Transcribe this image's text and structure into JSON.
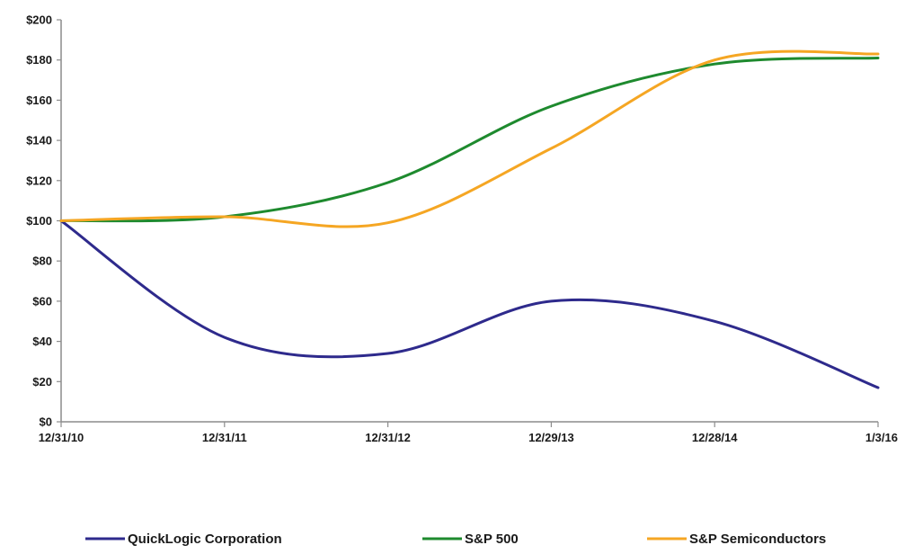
{
  "chart_data": {
    "type": "line",
    "title": "",
    "xlabel": "",
    "ylabel": "",
    "categories": [
      "12/31/10",
      "12/31/11",
      "12/31/12",
      "12/29/13",
      "12/28/14",
      "1/3/16"
    ],
    "ylim": [
      0,
      200
    ],
    "yticks": [
      0,
      20,
      40,
      60,
      80,
      100,
      120,
      140,
      160,
      180,
      200
    ],
    "ytick_labels": [
      "$0",
      "$20",
      "$40",
      "$60",
      "$80",
      "$100",
      "$120",
      "$140",
      "$160",
      "$180",
      "$200"
    ],
    "grid": false,
    "legend_position": "bottom",
    "series": [
      {
        "name": "QuickLogic Corporation",
        "color": "#2e2a8c",
        "values": [
          100,
          42,
          34,
          60,
          50,
          17
        ]
      },
      {
        "name": "S&P 500",
        "color": "#1e8a2e",
        "values": [
          100,
          102,
          119,
          157,
          178,
          181
        ]
      },
      {
        "name": "S&P Semiconductors",
        "color": "#f5a623",
        "values": [
          100,
          102,
          99,
          136,
          180,
          183
        ]
      }
    ]
  }
}
